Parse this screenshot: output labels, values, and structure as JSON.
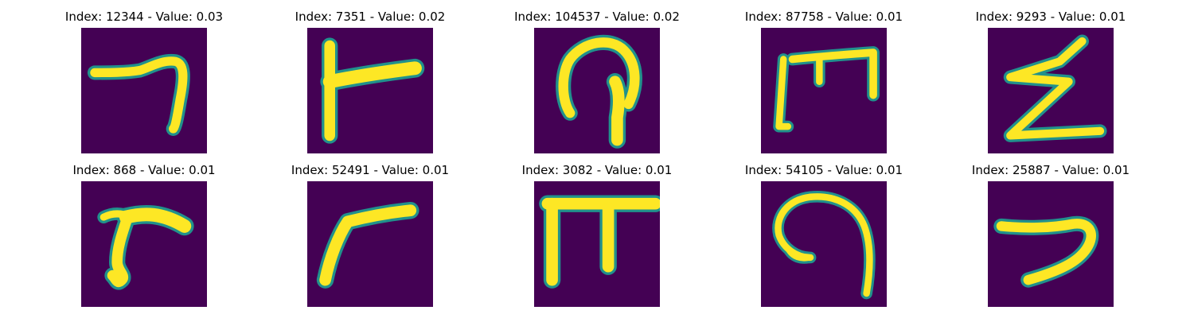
{
  "colors": {
    "background": "#440154",
    "edge": "#21918c",
    "mid": "#7ad151",
    "ink": "#fde725"
  },
  "panels": [
    {
      "title": "Index: 12344 - Value: 0.03",
      "glyph": "hook-seven"
    },
    {
      "title": "Index: 7351 - Value: 0.02",
      "glyph": "t-stroke"
    },
    {
      "title": "Index: 104537 - Value: 0.02",
      "glyph": "loop-arch"
    },
    {
      "title": "Index: 87758 - Value: 0.01",
      "glyph": "bracket-m"
    },
    {
      "title": "Index: 9293 - Value: 0.01",
      "glyph": "zigzag-z"
    },
    {
      "title": "Index: 868 - Value: 0.01",
      "glyph": "curved-r"
    },
    {
      "title": "Index: 52491 - Value: 0.01",
      "glyph": "curved-r-2"
    },
    {
      "title": "Index: 3082 - Value: 0.01",
      "glyph": "pi-shape"
    },
    {
      "title": "Index: 54105 - Value: 0.01",
      "glyph": "spiral-curve"
    },
    {
      "title": "Index: 25887 - Value: 0.01",
      "glyph": "hook-seven-2"
    }
  ]
}
